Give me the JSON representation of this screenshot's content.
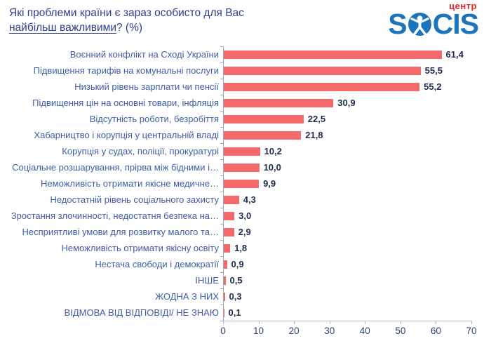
{
  "header": {
    "title_line1": "Які проблеми країни є зараз особисто для Вас",
    "title_line2_underlined": "найбільш важливими",
    "title_line2_rest": "? (%)",
    "logo": {
      "top_text": "центр",
      "word_part1": "S",
      "word_part2": "CIS",
      "blue": "#1b75bc",
      "red": "#e3232b"
    }
  },
  "chart_data": {
    "type": "bar",
    "orientation": "horizontal",
    "title": "Які проблеми країни є зараз особисто для Вас найбільш важливими? (%)",
    "categories": [
      "Воєнний конфлікт на Сході України",
      "Підвищення тарифів на комунальні послуги",
      "Низький рівень зарплати чи пенсії",
      "Підвищення цін на основні товари, інфляція",
      "Відсутність роботи, безробіття",
      "Хабарництво і корупція у центральній владі",
      "Корупція у судах, поліції, прокуратурі",
      "Соціальне розшарування, прірва між бідними і…",
      "Неможливість отримати якісне медичне…",
      "Недостатній рівень соціального захисту",
      "Зростання злочинності, недостатня безпека на…",
      "Несприятливі умови для розвитку малого та…",
      "Неможливість отримати якісну освіту",
      "Нестача свободи і демократії",
      "ІНШЕ",
      "ЖОДНА З НИХ",
      "ВІДМОВА ВІД ВІДПОВІДІ/ НЕ ЗНАЮ"
    ],
    "values": [
      61.4,
      55.5,
      55.2,
      30.9,
      22.5,
      21.8,
      10.2,
      10.0,
      9.9,
      4.3,
      3.0,
      2.9,
      1.8,
      0.9,
      0.5,
      0.3,
      0.1
    ],
    "value_labels": [
      "61,4",
      "55,5",
      "55,2",
      "30,9",
      "22,5",
      "21,8",
      "10,2",
      "10,0",
      "9,9",
      "4,3",
      "3,0",
      "2,9",
      "1,8",
      "0,9",
      "0,5",
      "0,3",
      "0,1"
    ],
    "xlabel": "",
    "ylabel": "",
    "xlim": [
      0,
      70
    ],
    "x_ticks": [
      0,
      10,
      20,
      30,
      40,
      50,
      60,
      70
    ],
    "grid": false,
    "legend": false,
    "bar_color": "#f4696b",
    "category_label_color": "#3e5caa",
    "value_label_color": "#1e2b4f",
    "axis_tick_label_color": "#2d4373",
    "axis_line_color": "#9fa9bb"
  }
}
